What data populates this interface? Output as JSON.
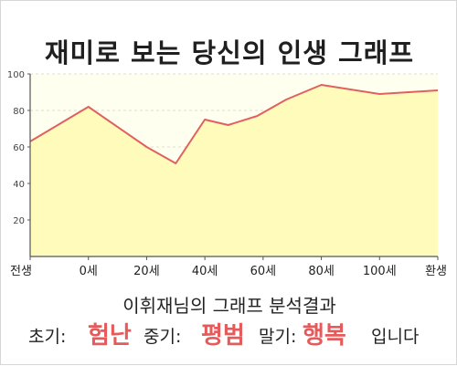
{
  "title": "재미로 보는 당신의 인생 그래프",
  "chart_data": {
    "type": "area",
    "x_tick_labels": [
      "전생",
      "0세",
      "20세",
      "40세",
      "60세",
      "80세",
      "100세",
      "환생"
    ],
    "points": [
      {
        "x": -20,
        "y": 63
      },
      {
        "x": 0,
        "y": 82
      },
      {
        "x": 20,
        "y": 60
      },
      {
        "x": 30,
        "y": 51
      },
      {
        "x": 40,
        "y": 75
      },
      {
        "x": 48,
        "y": 72
      },
      {
        "x": 58,
        "y": 77
      },
      {
        "x": 68,
        "y": 86
      },
      {
        "x": 80,
        "y": 94
      },
      {
        "x": 100,
        "y": 89
      },
      {
        "x": 120,
        "y": 91
      }
    ],
    "ylim": [
      0,
      100
    ],
    "yticks": [
      20,
      40,
      60,
      80,
      100
    ],
    "xlim": [
      -20,
      120
    ],
    "grid": true,
    "colors": {
      "fill": "#fffbbb",
      "line": "#e06060",
      "grid": "#e0ddc6",
      "axis": "#555555",
      "plot_background": "#fffff0"
    }
  },
  "summary": {
    "title": "이휘재님의 그래프 분석결과",
    "early_label": "초기:",
    "early_value": "험난",
    "middle_label": "중기:",
    "middle_value": "평범",
    "late_label": "말기:",
    "late_value": "행복",
    "ending": "입니다"
  }
}
